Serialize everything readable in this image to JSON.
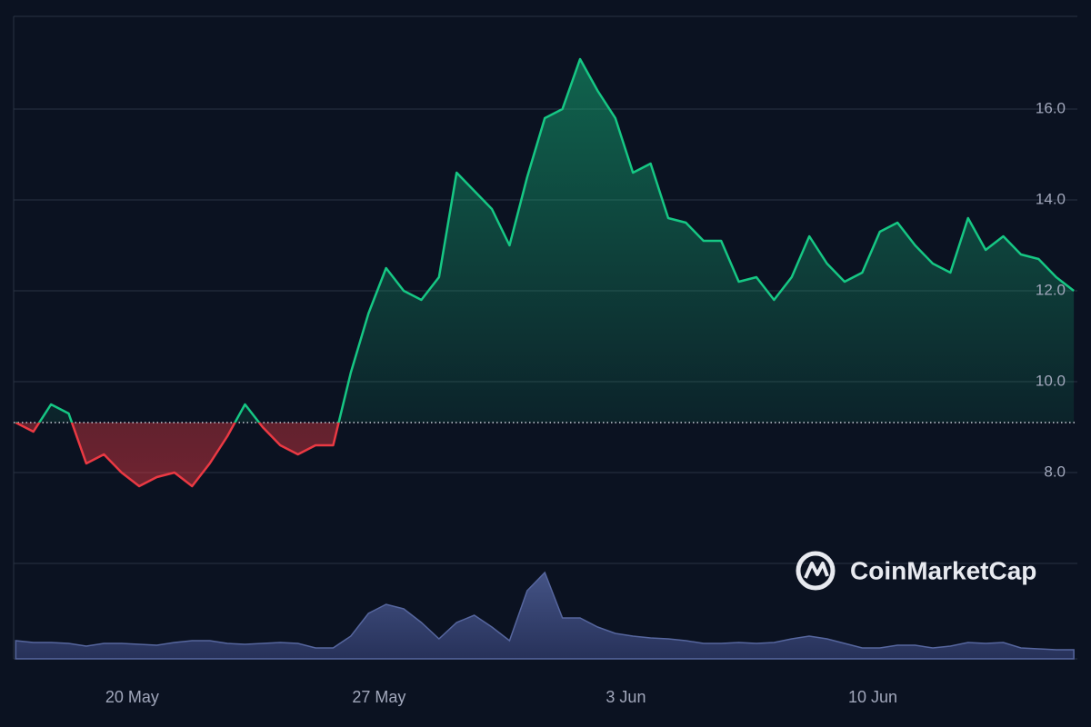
{
  "chart_data": {
    "type": "line",
    "x": [
      -3.3,
      -2.8,
      -2.3,
      -1.8,
      -1.3,
      -0.8,
      -0.3,
      0.2,
      0.7,
      1.2,
      1.7,
      2.2,
      2.7,
      3.2,
      3.7,
      4.2,
      4.7,
      5.2,
      5.7,
      6.2,
      6.7,
      7.2,
      7.7,
      8.2,
      8.7,
      9.2,
      9.7,
      10.2,
      10.7,
      11.2,
      11.7,
      12.2,
      12.7,
      13.2,
      13.7,
      14.2,
      14.7,
      15.2,
      15.7,
      16.2,
      16.7,
      17.2,
      17.7,
      18.2,
      18.7,
      19.2,
      19.7,
      20.2,
      20.7,
      21.2,
      21.7,
      22.2,
      22.7,
      23.2,
      23.7,
      24.2,
      24.7,
      25.2,
      25.7,
      26.2,
      26.7
    ],
    "series": [
      {
        "color": "#16c784",
        "below_color": "#ea3943",
        "values": [
          9.1,
          8.9,
          9.5,
          9.3,
          8.2,
          8.4,
          8.0,
          7.7,
          7.9,
          8.0,
          7.7,
          8.2,
          8.8,
          9.5,
          9.0,
          8.6,
          8.4,
          8.6,
          8.6,
          10.2,
          11.5,
          12.5,
          12.0,
          11.8,
          12.3,
          14.6,
          14.2,
          13.8,
          13.0,
          14.5,
          15.8,
          16.0,
          17.1,
          16.4,
          15.8,
          14.6,
          14.8,
          13.6,
          13.5,
          13.1,
          13.1,
          12.2,
          12.3,
          11.8,
          12.3,
          13.2,
          12.6,
          12.2,
          12.4,
          13.3,
          13.5,
          13.0,
          12.6,
          12.4,
          13.6,
          12.9,
          13.2,
          12.8,
          12.7,
          12.3,
          12.0
        ]
      }
    ],
    "baseline": 9.1,
    "volume": {
      "color": "#3a4a7a",
      "ylim": [
        0,
        100
      ],
      "values": [
        20,
        18,
        18,
        17,
        14,
        17,
        17,
        16,
        15,
        18,
        20,
        20,
        17,
        16,
        17,
        18,
        17,
        12,
        12,
        25,
        50,
        60,
        55,
        40,
        22,
        40,
        48,
        35,
        20,
        75,
        95,
        45,
        45,
        35,
        28,
        25,
        23,
        22,
        20,
        17,
        17,
        18,
        17,
        18,
        22,
        25,
        22,
        17,
        12,
        12,
        15,
        15,
        12,
        14,
        18,
        17,
        18,
        12,
        11,
        10,
        10
      ]
    },
    "xlim": [
      -3.36,
      26.8
    ],
    "xticks": [
      {
        "value": 0,
        "label": "20 May"
      },
      {
        "value": 7,
        "label": "27 May"
      },
      {
        "value": 14,
        "label": "3 Jun"
      },
      {
        "value": 21,
        "label": "10 Jun"
      }
    ],
    "ylim": [
      6,
      18
    ],
    "yticks": [
      {
        "value": 8,
        "label": "8.0"
      },
      {
        "value": 10,
        "label": "10.0"
      },
      {
        "value": 12,
        "label": "12.0"
      },
      {
        "value": 14,
        "label": "14.0"
      },
      {
        "value": 16,
        "label": "16.0"
      }
    ],
    "grid": true,
    "watermark": "CoinMarketCap"
  }
}
